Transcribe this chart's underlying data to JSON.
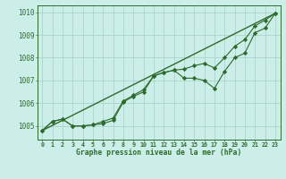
{
  "title": "Graphe pression niveau de la mer (hPa)",
  "bg_color": "#cceee8",
  "line_color": "#2d6a2d",
  "grid_color": "#aad4cc",
  "ylim": [
    1004.4,
    1010.3
  ],
  "yticks": [
    1005,
    1006,
    1007,
    1008,
    1009,
    1010
  ],
  "x_ticks": [
    0,
    1,
    2,
    3,
    4,
    5,
    6,
    7,
    8,
    9,
    10,
    11,
    12,
    13,
    14,
    15,
    16,
    17,
    18,
    19,
    20,
    21,
    22,
    23
  ],
  "series1_x": [
    0,
    1,
    2,
    3,
    4,
    5,
    6,
    7,
    8,
    9,
    10,
    11,
    12,
    13,
    14,
    15,
    16,
    17,
    18,
    19,
    20,
    21,
    22,
    23
  ],
  "series1_y": [
    1004.8,
    1005.2,
    1005.3,
    1005.0,
    1005.0,
    1005.05,
    1005.1,
    1005.25,
    1006.05,
    1006.3,
    1006.5,
    1007.2,
    1007.35,
    1007.45,
    1007.1,
    1007.1,
    1007.0,
    1006.65,
    1007.4,
    1008.0,
    1008.2,
    1009.1,
    1009.3,
    1009.95
  ],
  "series2_x": [
    0,
    1,
    2,
    3,
    4,
    5,
    6,
    7,
    8,
    9,
    10,
    11,
    12,
    13,
    14,
    15,
    16,
    17,
    18,
    19,
    20,
    21,
    22,
    23
  ],
  "series2_y": [
    1004.8,
    1005.2,
    1005.3,
    1005.0,
    1005.0,
    1005.05,
    1005.2,
    1005.35,
    1006.1,
    1006.35,
    1006.6,
    1007.2,
    1007.35,
    1007.45,
    1007.5,
    1007.65,
    1007.75,
    1007.55,
    1008.0,
    1008.5,
    1008.8,
    1009.4,
    1009.65,
    1009.95
  ],
  "trend_x": [
    0,
    23
  ],
  "trend_y": [
    1004.8,
    1009.95
  ]
}
